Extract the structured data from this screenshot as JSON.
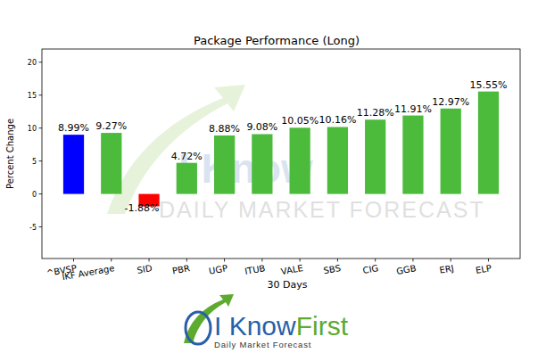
{
  "chart_data": {
    "type": "bar",
    "title": "Package Performance (Long)",
    "x_label": "30 Days",
    "y_label": "Percent Change",
    "categories": [
      "^BVSP",
      "IKF Average",
      "SID",
      "PBR",
      "UGP",
      "ITUB",
      "VALE",
      "SBS",
      "CIG",
      "GGB",
      "ERJ",
      "ELP"
    ],
    "values": [
      8.99,
      9.27,
      -1.88,
      4.72,
      8.88,
      9.08,
      10.05,
      10.16,
      11.28,
      11.91,
      12.97,
      15.55
    ],
    "value_labels": [
      "8.99%",
      "9.27%",
      "-1.88%",
      "4.72%",
      "8.88%",
      "9.08%",
      "10.05%",
      "10.16%",
      "11.28%",
      "11.91%",
      "12.97%",
      "15.55%"
    ],
    "colors": [
      "#0000ff",
      "#4cbb3c",
      "#ff0000",
      "#4cbb3c",
      "#4cbb3c",
      "#4cbb3c",
      "#4cbb3c",
      "#4cbb3c",
      "#4cbb3c",
      "#4cbb3c",
      "#4cbb3c",
      "#4cbb3c"
    ],
    "ylim": [
      -9.8,
      22
    ],
    "yticks": [
      -5,
      0,
      5,
      10,
      15,
      20
    ],
    "grid": false,
    "data_labels": true
  },
  "watermark": [
    "I Know",
    "DAILY MARKET FORECAST"
  ],
  "logo": {
    "name_parts": [
      "I Know",
      "First"
    ],
    "tagline": "Daily Market Forecast"
  }
}
